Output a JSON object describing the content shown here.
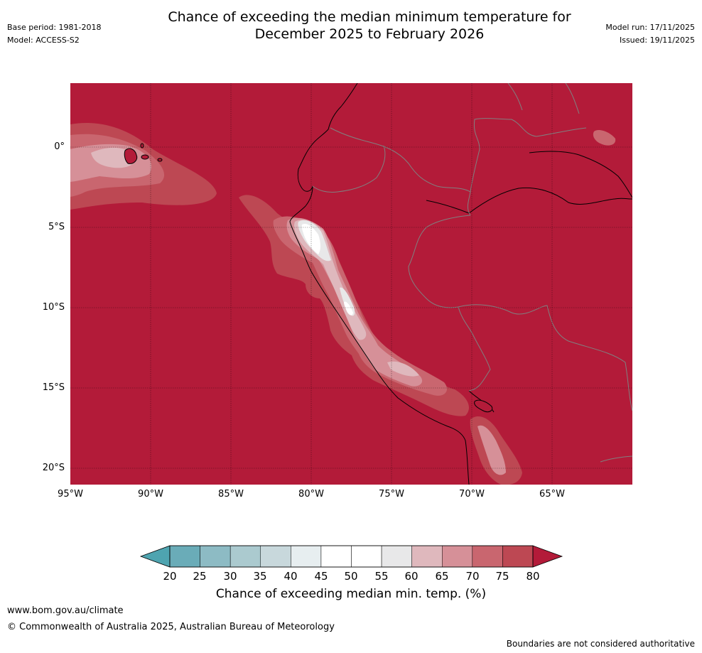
{
  "header": {
    "title_line1": "Chance of exceeding the median minimum temperature for",
    "title_line2": "December 2025 to February 2026",
    "base_period": "Base period: 1981-2018",
    "model": "Model: ACCESS-S2",
    "model_run": "Model run: 17/11/2025",
    "issued": "Issued: 19/11/2025"
  },
  "map": {
    "lat_labels": [
      "0°",
      "5°S",
      "10°S",
      "15°S",
      "20°S"
    ],
    "lon_labels": [
      "95°W",
      "90°W",
      "85°W",
      "80°W",
      "75°W",
      "70°W",
      "65°W"
    ],
    "background_category": "80+",
    "features": [
      "Galápagos Islands",
      "Ecuador",
      "Peru",
      "Chile",
      "Lake Titicaca"
    ]
  },
  "legend": {
    "label": "Chance of exceeding median min. temp. (%)",
    "ticks": [
      "20",
      "25",
      "30",
      "35",
      "40",
      "45",
      "50",
      "55",
      "60",
      "65",
      "70",
      "75",
      "80"
    ],
    "below_color": "#4ea4b0",
    "above_color": "#b31b39",
    "bin_colors": [
      "#6aacb8",
      "#8dbbc4",
      "#abcacf",
      "#c8d8dc",
      "#e7eef0",
      "#ffffff",
      "#ffffff",
      "#e8e8e9",
      "#dfb8bd",
      "#d69098",
      "#c9666f",
      "#bd4853"
    ]
  },
  "footer": {
    "url": "www.bom.gov.au/climate",
    "copyright": "© Commonwealth of Australia 2025, Australian Bureau of Meteorology",
    "disclaimer": "Boundaries are not considered authoritative"
  }
}
